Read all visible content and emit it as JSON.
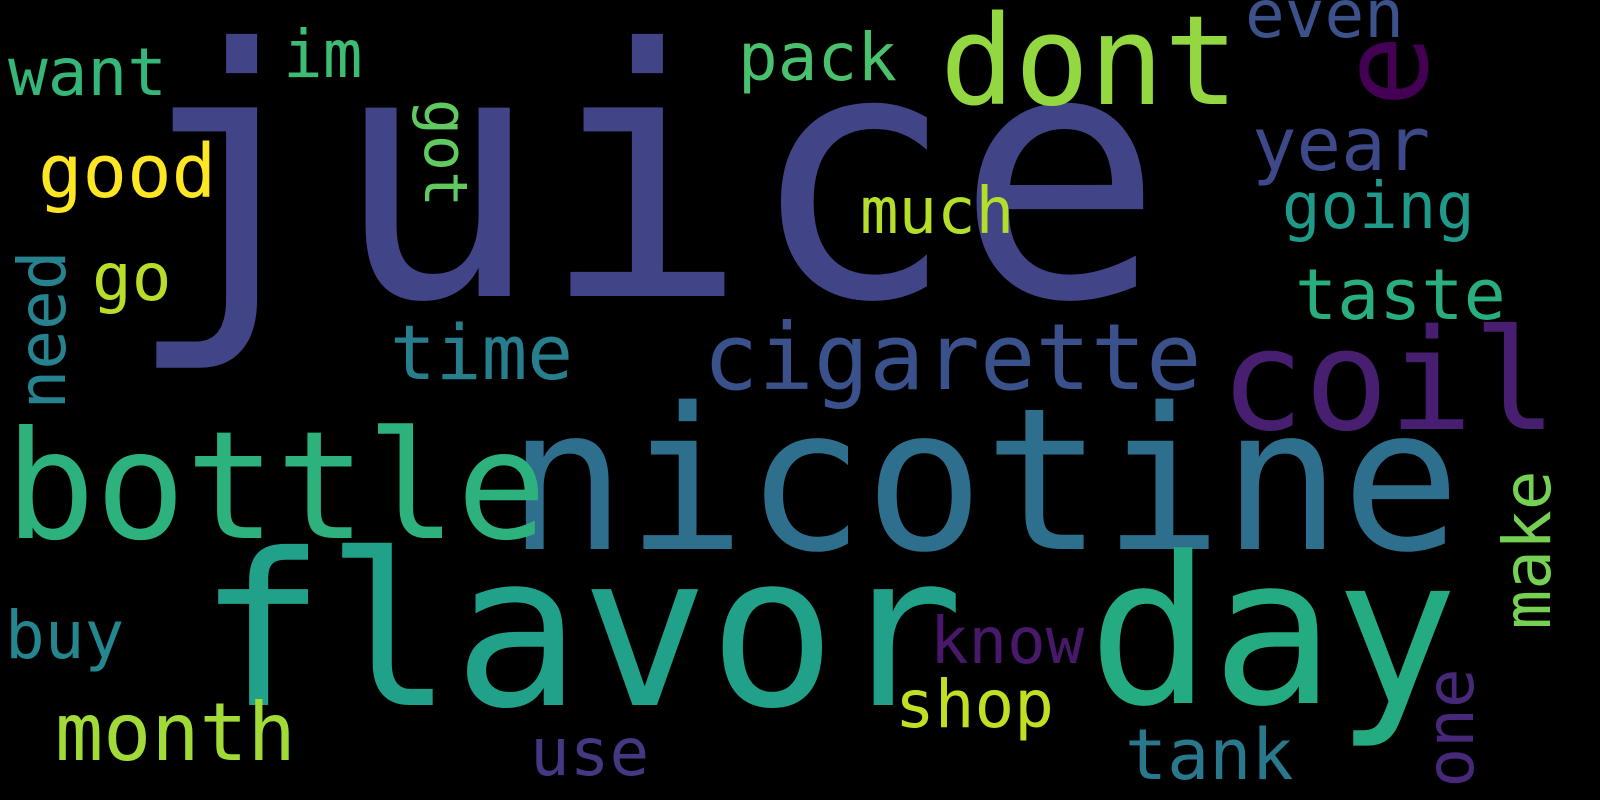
{
  "background": "#000000",
  "words": [
    {
      "key": "juice",
      "text": "juice",
      "color": "#414487"
    },
    {
      "key": "nicotine",
      "text": "nicotine",
      "color": "#2e6f8e"
    },
    {
      "key": "flavor",
      "text": "flavor",
      "color": "#21a08a"
    },
    {
      "key": "bottle",
      "text": "bottle",
      "color": "#2db27d"
    },
    {
      "key": "day",
      "text": "day",
      "color": "#25ab82"
    },
    {
      "key": "dont",
      "text": "dont",
      "color": "#93d741"
    },
    {
      "key": "coil",
      "text": "coil",
      "color": "#481f70"
    },
    {
      "key": "e",
      "text": "e",
      "color": "#440154"
    },
    {
      "key": "cigarette",
      "text": "cigarette",
      "color": "#3b518b"
    },
    {
      "key": "month",
      "text": "month",
      "color": "#a2da37"
    },
    {
      "key": "good",
      "text": "good",
      "color": "#fde725"
    },
    {
      "key": "want",
      "text": "want",
      "color": "#35b779"
    },
    {
      "key": "im",
      "text": "im",
      "color": "#3dbc74"
    },
    {
      "key": "pack",
      "text": "pack",
      "color": "#4ac16d"
    },
    {
      "key": "even",
      "text": "even",
      "color": "#3b528b"
    },
    {
      "key": "year",
      "text": "year",
      "color": "#3e4989"
    },
    {
      "key": "going",
      "text": "going",
      "color": "#1f9a8a"
    },
    {
      "key": "taste",
      "text": "taste",
      "color": "#29af7f"
    },
    {
      "key": "much",
      "text": "much",
      "color": "#b5de2b"
    },
    {
      "key": "got",
      "text": "got",
      "color": "#60ca60"
    },
    {
      "key": "go",
      "text": "go",
      "color": "#b8de29"
    },
    {
      "key": "need",
      "text": "need",
      "color": "#26828e"
    },
    {
      "key": "time",
      "text": "time",
      "color": "#277f8e"
    },
    {
      "key": "buy",
      "text": "buy",
      "color": "#24868e"
    },
    {
      "key": "know",
      "text": "know",
      "color": "#48186a"
    },
    {
      "key": "shop",
      "text": "shop",
      "color": "#c2df23"
    },
    {
      "key": "make",
      "text": "make",
      "color": "#75d054"
    },
    {
      "key": "one",
      "text": "one",
      "color": "#482878"
    },
    {
      "key": "use",
      "text": "use",
      "color": "#453781"
    },
    {
      "key": "tank",
      "text": "tank",
      "color": "#2a788e"
    }
  ]
}
